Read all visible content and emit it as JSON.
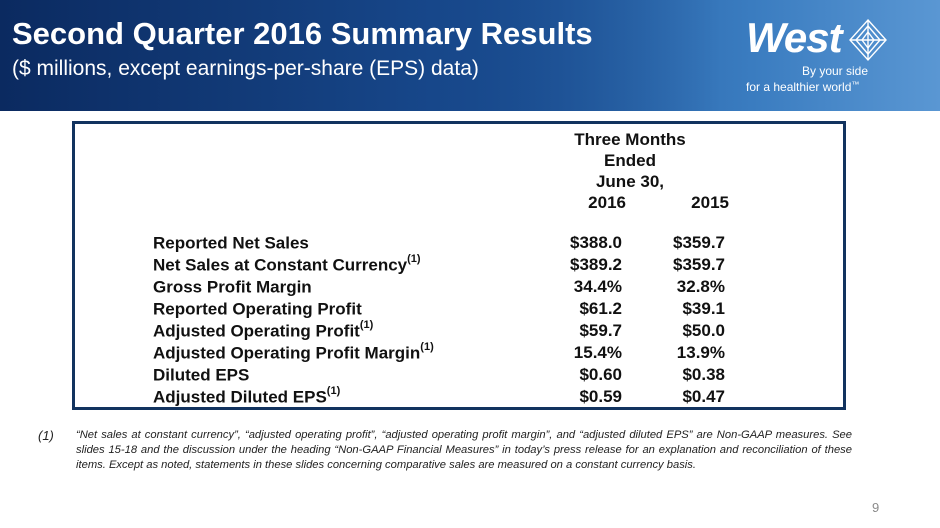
{
  "header": {
    "title": "Second Quarter 2016 Summary Results",
    "subtitle": "($ millions, except earnings-per-share (EPS) data)"
  },
  "logo": {
    "wordmark": "West",
    "tagline_line1": "By your side",
    "tagline_line2": "for a healthier world",
    "tm": "™"
  },
  "table": {
    "period_header": [
      "Three Months",
      "Ended",
      "June 30,"
    ],
    "columns": [
      "2016",
      "2015"
    ],
    "rows": [
      {
        "label": "Reported Net Sales",
        "note": "",
        "v2016": "$388.0",
        "v2015": "$359.7"
      },
      {
        "label": "Net Sales at Constant Currency",
        "note": "(1)",
        "v2016": "$389.2",
        "v2015": "$359.7"
      },
      {
        "label": "Gross Profit Margin",
        "note": "",
        "v2016": "34.4%",
        "v2015": "32.8%"
      },
      {
        "label": "Reported Operating Profit",
        "note": "",
        "v2016": "$61.2",
        "v2015": "$39.1"
      },
      {
        "label": "Adjusted Operating Profit",
        "note": "(1)",
        "v2016": "$59.7",
        "v2015": "$50.0"
      },
      {
        "label": "Adjusted Operating Profit Margin",
        "note": "(1)",
        "v2016": "15.4%",
        "v2015": "13.9%"
      },
      {
        "label": "Diluted EPS",
        "note": "",
        "v2016": "$0.60",
        "v2015": "$0.38"
      },
      {
        "label": "Adjusted Diluted EPS",
        "note": "(1)",
        "v2016": "$0.59",
        "v2015": "$0.47"
      }
    ]
  },
  "footnote": {
    "marker": "(1)",
    "text": "“Net sales at constant currency”, “adjusted operating profit”, “adjusted operating profit margin”, and “adjusted diluted EPS” are Non-GAAP measures. See slides 15-18 and the discussion under the heading “Non-GAAP Financial Measures” in today’s press release for an explanation and reconciliation of these items.  Except as noted, statements in these slides concerning comparative sales are measured on a constant currency basis."
  },
  "page_number": "9"
}
